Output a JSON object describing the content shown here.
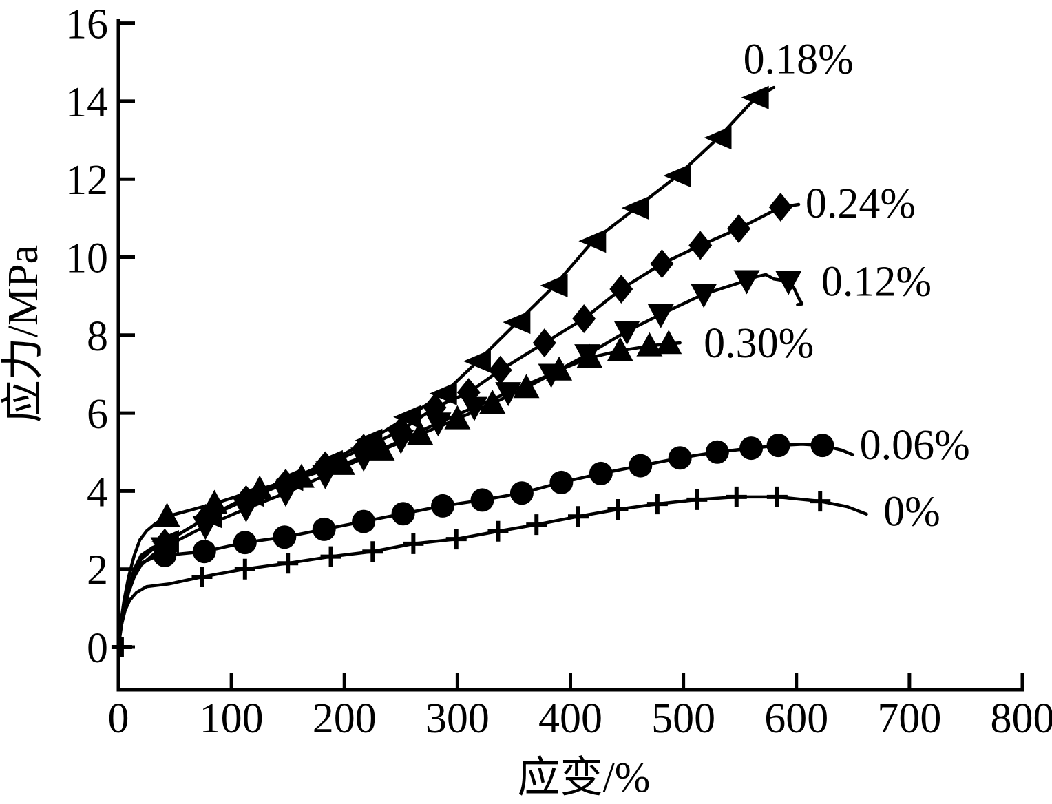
{
  "figure": {
    "background": "#ffffff",
    "ink": "#000000"
  },
  "chart_data": {
    "type": "line",
    "title": "",
    "xlabel": "应变/%",
    "ylabel": "应力/MPa",
    "xlim": [
      0,
      800
    ],
    "ylim": [
      0,
      16
    ],
    "xticks": [
      0,
      100,
      200,
      300,
      400,
      500,
      600,
      700,
      800
    ],
    "yticks": [
      0,
      2,
      4,
      6,
      8,
      10,
      12,
      14,
      16
    ],
    "grid": false,
    "legend_style": "inline-curve-labels",
    "line_color": "#000000",
    "series": [
      {
        "name": "0.18%",
        "marker": "triangle-left",
        "label": {
          "text": "0.18%",
          "x": 553,
          "y": 15.1
        },
        "line": [
          [
            0,
            0
          ],
          [
            2,
            0.5
          ],
          [
            5,
            1.0
          ],
          [
            9,
            1.5
          ],
          [
            14,
            1.95
          ],
          [
            20,
            2.25
          ],
          [
            30,
            2.5
          ],
          [
            42,
            2.7
          ],
          [
            80,
            3.35
          ],
          [
            117,
            3.9
          ],
          [
            152,
            4.3
          ],
          [
            187,
            4.75
          ],
          [
            222,
            5.3
          ],
          [
            256,
            5.9
          ],
          [
            288,
            6.5
          ],
          [
            318,
            7.33
          ],
          [
            353,
            8.33
          ],
          [
            386,
            9.27
          ],
          [
            420,
            10.41
          ],
          [
            458,
            11.26
          ],
          [
            495,
            12.09
          ],
          [
            531,
            13.06
          ],
          [
            564,
            14.09
          ],
          [
            580,
            14.35
          ]
        ],
        "markers": [
          [
            42,
            2.7
          ],
          [
            80,
            3.35
          ],
          [
            117,
            3.9
          ],
          [
            152,
            4.3
          ],
          [
            187,
            4.75
          ],
          [
            222,
            5.3
          ],
          [
            256,
            5.9
          ],
          [
            288,
            6.5
          ],
          [
            318,
            7.33
          ],
          [
            353,
            8.33
          ],
          [
            386,
            9.27
          ],
          [
            420,
            10.41
          ],
          [
            458,
            11.26
          ],
          [
            495,
            12.09
          ],
          [
            531,
            13.06
          ],
          [
            564,
            14.09
          ]
        ]
      },
      {
        "name": "0.24%",
        "marker": "diamond",
        "label": {
          "text": "0.24%",
          "x": 608,
          "y": 11.4
        },
        "line": [
          [
            0,
            0
          ],
          [
            2,
            0.5
          ],
          [
            5,
            1.0
          ],
          [
            9,
            1.55
          ],
          [
            14,
            2.0
          ],
          [
            20,
            2.35
          ],
          [
            30,
            2.55
          ],
          [
            41,
            2.67
          ],
          [
            77,
            3.3
          ],
          [
            113,
            3.78
          ],
          [
            148,
            4.2
          ],
          [
            183,
            4.65
          ],
          [
            217,
            5.1
          ],
          [
            250,
            5.55
          ],
          [
            280,
            6.14
          ],
          [
            310,
            6.53
          ],
          [
            338,
            7.1
          ],
          [
            377,
            7.8
          ],
          [
            412,
            8.42
          ],
          [
            445,
            9.18
          ],
          [
            481,
            9.83
          ],
          [
            515,
            10.3
          ],
          [
            549,
            10.73
          ],
          [
            586,
            11.28
          ],
          [
            602,
            11.35
          ]
        ],
        "markers": [
          [
            41,
            2.67
          ],
          [
            77,
            3.3
          ],
          [
            113,
            3.78
          ],
          [
            148,
            4.2
          ],
          [
            183,
            4.65
          ],
          [
            217,
            5.1
          ],
          [
            250,
            5.55
          ],
          [
            280,
            6.14
          ],
          [
            310,
            6.53
          ],
          [
            338,
            7.1
          ],
          [
            377,
            7.8
          ],
          [
            412,
            8.42
          ],
          [
            445,
            9.18
          ],
          [
            481,
            9.83
          ],
          [
            515,
            10.3
          ],
          [
            549,
            10.73
          ],
          [
            586,
            11.28
          ]
        ]
      },
      {
        "name": "0.12%",
        "marker": "triangle-down",
        "label": {
          "text": "0.12%",
          "x": 622,
          "y": 9.4
        },
        "line": [
          [
            0,
            0
          ],
          [
            2,
            0.45
          ],
          [
            5,
            0.9
          ],
          [
            9,
            1.4
          ],
          [
            14,
            1.8
          ],
          [
            20,
            2.1
          ],
          [
            30,
            2.35
          ],
          [
            40,
            2.55
          ],
          [
            77,
            3.1
          ],
          [
            113,
            3.55
          ],
          [
            148,
            3.95
          ],
          [
            183,
            4.4
          ],
          [
            217,
            4.85
          ],
          [
            250,
            5.3
          ],
          [
            283,
            5.75
          ],
          [
            315,
            6.15
          ],
          [
            345,
            6.53
          ],
          [
            383,
            7.0
          ],
          [
            415,
            7.5
          ],
          [
            450,
            8.1
          ],
          [
            480,
            8.53
          ],
          [
            518,
            9.05
          ],
          [
            556,
            9.4
          ],
          [
            565,
            9.5
          ],
          [
            573,
            9.55
          ],
          [
            580,
            9.44
          ],
          [
            593,
            9.38
          ],
          [
            598,
            9.2
          ],
          [
            602,
            8.95
          ],
          [
            605,
            8.8
          ],
          [
            601,
            8.78
          ]
        ],
        "markers": [
          [
            40,
            2.55
          ],
          [
            77,
            3.1
          ],
          [
            113,
            3.55
          ],
          [
            148,
            3.95
          ],
          [
            183,
            4.4
          ],
          [
            217,
            4.85
          ],
          [
            250,
            5.3
          ],
          [
            283,
            5.75
          ],
          [
            315,
            6.15
          ],
          [
            345,
            6.53
          ],
          [
            383,
            7.0
          ],
          [
            415,
            7.5
          ],
          [
            450,
            8.1
          ],
          [
            480,
            8.53
          ],
          [
            518,
            9.05
          ],
          [
            556,
            9.4
          ],
          [
            593,
            9.38
          ]
        ]
      },
      {
        "name": "0.30%",
        "marker": "triangle-up",
        "label": {
          "text": "0.30%",
          "x": 518,
          "y": 7.82
        },
        "line": [
          [
            0,
            0
          ],
          [
            2,
            0.6
          ],
          [
            5,
            1.2
          ],
          [
            9,
            1.8
          ],
          [
            14,
            2.35
          ],
          [
            19,
            2.75
          ],
          [
            25,
            2.98
          ],
          [
            32,
            3.15
          ],
          [
            43,
            3.35
          ],
          [
            85,
            3.68
          ],
          [
            125,
            4.05
          ],
          [
            162,
            4.35
          ],
          [
            198,
            4.68
          ],
          [
            233,
            5.05
          ],
          [
            267,
            5.45
          ],
          [
            300,
            5.85
          ],
          [
            331,
            6.25
          ],
          [
            361,
            6.65
          ],
          [
            390,
            7.1
          ],
          [
            417,
            7.42
          ],
          [
            444,
            7.6
          ],
          [
            470,
            7.72
          ],
          [
            487,
            7.78
          ],
          [
            497,
            7.8
          ]
        ],
        "markers": [
          [
            43,
            3.35
          ],
          [
            85,
            3.68
          ],
          [
            125,
            4.05
          ],
          [
            162,
            4.35
          ],
          [
            198,
            4.68
          ],
          [
            233,
            5.05
          ],
          [
            267,
            5.45
          ],
          [
            300,
            5.85
          ],
          [
            331,
            6.25
          ],
          [
            361,
            6.65
          ],
          [
            390,
            7.1
          ],
          [
            417,
            7.42
          ],
          [
            444,
            7.6
          ],
          [
            470,
            7.72
          ],
          [
            487,
            7.78
          ]
        ]
      },
      {
        "name": "0.06%",
        "marker": "circle",
        "label": {
          "text": "0.06%",
          "x": 656,
          "y": 5.21
        },
        "line": [
          [
            0,
            0
          ],
          [
            2,
            0.5
          ],
          [
            5,
            1.05
          ],
          [
            9,
            1.55
          ],
          [
            14,
            1.95
          ],
          [
            20,
            2.15
          ],
          [
            30,
            2.28
          ],
          [
            41,
            2.35
          ],
          [
            76,
            2.45
          ],
          [
            112,
            2.68
          ],
          [
            147,
            2.82
          ],
          [
            182,
            3.02
          ],
          [
            217,
            3.22
          ],
          [
            252,
            3.42
          ],
          [
            287,
            3.62
          ],
          [
            322,
            3.77
          ],
          [
            357,
            3.95
          ],
          [
            392,
            4.22
          ],
          [
            427,
            4.45
          ],
          [
            462,
            4.65
          ],
          [
            497,
            4.85
          ],
          [
            530,
            5.0
          ],
          [
            560,
            5.1
          ],
          [
            584,
            5.17
          ],
          [
            605,
            5.2
          ],
          [
            623,
            5.17
          ],
          [
            640,
            5.05
          ],
          [
            650,
            4.93
          ]
        ],
        "markers": [
          [
            41,
            2.35
          ],
          [
            76,
            2.45
          ],
          [
            112,
            2.68
          ],
          [
            147,
            2.82
          ],
          [
            182,
            3.02
          ],
          [
            217,
            3.22
          ],
          [
            252,
            3.42
          ],
          [
            287,
            3.62
          ],
          [
            322,
            3.77
          ],
          [
            357,
            3.95
          ],
          [
            392,
            4.22
          ],
          [
            427,
            4.45
          ],
          [
            462,
            4.65
          ],
          [
            497,
            4.85
          ],
          [
            530,
            5.0
          ],
          [
            560,
            5.1
          ],
          [
            584,
            5.17
          ],
          [
            623,
            5.17
          ]
        ]
      },
      {
        "name": "0%",
        "marker": "plus",
        "label": {
          "text": "0%",
          "x": 677,
          "y": 3.5
        },
        "line": [
          [
            0,
            -0.1
          ],
          [
            1,
            0.2
          ],
          [
            3,
            0.6
          ],
          [
            6,
            0.95
          ],
          [
            10,
            1.2
          ],
          [
            16,
            1.4
          ],
          [
            25,
            1.55
          ],
          [
            45,
            1.62
          ],
          [
            74,
            1.8
          ],
          [
            112,
            2.0
          ],
          [
            150,
            2.15
          ],
          [
            188,
            2.32
          ],
          [
            225,
            2.45
          ],
          [
            261,
            2.65
          ],
          [
            299,
            2.77
          ],
          [
            336,
            2.97
          ],
          [
            370,
            3.14
          ],
          [
            407,
            3.35
          ],
          [
            442,
            3.53
          ],
          [
            477,
            3.67
          ],
          [
            512,
            3.78
          ],
          [
            547,
            3.85
          ],
          [
            583,
            3.85
          ],
          [
            621,
            3.74
          ],
          [
            645,
            3.6
          ],
          [
            662,
            3.41
          ]
        ],
        "markers": [
          [
            3,
            0.0
          ],
          [
            74,
            1.8
          ],
          [
            112,
            2.0
          ],
          [
            150,
            2.15
          ],
          [
            188,
            2.32
          ],
          [
            225,
            2.45
          ],
          [
            261,
            2.65
          ],
          [
            299,
            2.77
          ],
          [
            336,
            2.97
          ],
          [
            370,
            3.14
          ],
          [
            407,
            3.35
          ],
          [
            442,
            3.53
          ],
          [
            477,
            3.67
          ],
          [
            512,
            3.78
          ],
          [
            547,
            3.85
          ],
          [
            583,
            3.85
          ],
          [
            621,
            3.74
          ]
        ]
      }
    ]
  }
}
